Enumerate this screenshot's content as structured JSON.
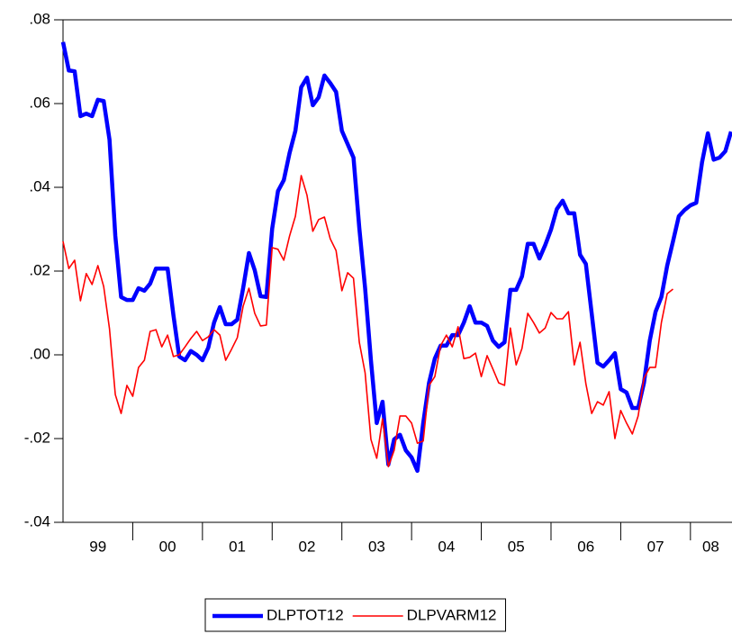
{
  "chart_data": {
    "type": "line",
    "categories": [
      null,
      null,
      null,
      null,
      null,
      null,
      "99",
      null,
      null,
      null,
      null,
      null,
      null,
      null,
      null,
      null,
      null,
      null,
      "00",
      null,
      null,
      null,
      null,
      null,
      null,
      null,
      null,
      null,
      null,
      null,
      "01",
      null,
      null,
      null,
      null,
      null,
      null,
      null,
      null,
      null,
      null,
      null,
      "02",
      null,
      null,
      null,
      null,
      null,
      null,
      null,
      null,
      null,
      null,
      null,
      "03",
      null,
      null,
      null,
      null,
      null,
      null,
      null,
      null,
      null,
      null,
      null,
      "04",
      null,
      null,
      null,
      null,
      null,
      null,
      null,
      null,
      null,
      null,
      null,
      "05",
      null,
      null,
      null,
      null,
      null,
      null,
      null,
      null,
      null,
      null,
      null,
      "06",
      null,
      null,
      null,
      null,
      null,
      null,
      null,
      null,
      null,
      null,
      null,
      "07",
      null,
      null,
      null,
      null,
      null,
      null,
      null,
      null,
      null,
      null,
      null,
      "08",
      null
    ],
    "series": [
      {
        "name": "DLPTOT12",
        "color": "#0000ff",
        "values": [
          0.0747,
          0.0679,
          0.0677,
          0.057,
          0.0576,
          0.057,
          0.0609,
          0.0606,
          0.0514,
          0.0284,
          0.0138,
          0.0131,
          0.0131,
          0.0159,
          0.0153,
          0.017,
          0.0206,
          0.0206,
          0.0206,
          0.0095,
          -0.0004,
          -0.0013,
          0.0009,
          0,
          -0.0013,
          0.0017,
          0.0077,
          0.0114,
          0.0073,
          0.0073,
          0.0084,
          0.0159,
          0.0243,
          0.0202,
          0.014,
          0.0138,
          0.0301,
          0.0391,
          0.0417,
          0.0482,
          0.0535,
          0.0639,
          0.0662,
          0.0596,
          0.0615,
          0.0667,
          0.0649,
          0.0628,
          0.0535,
          0.0503,
          0.0471,
          0.0303,
          0.0159,
          -0.0013,
          -0.0163,
          -0.0112,
          -0.0262,
          -0.0202,
          -0.0191,
          -0.0228,
          -0.0245,
          -0.0277,
          -0.0163,
          -0.0067,
          -0.0009,
          0.0022,
          0.0022,
          0.0047,
          0.0047,
          0.0077,
          0.0116,
          0.0077,
          0.0077,
          0.0069,
          0.0034,
          0.0019,
          0.003,
          0.0155,
          0.0155,
          0.0187,
          0.0265,
          0.0265,
          0.023,
          0.0262,
          0.0299,
          0.0348,
          0.0368,
          0.0338,
          0.0338,
          0.0239,
          0.0217,
          0.0099,
          -0.0019,
          -0.0028,
          -0.0013,
          0.0004,
          -0.0082,
          -0.009,
          -0.0127,
          -0.0127,
          -0.0067,
          0.0034,
          0.0103,
          0.0138,
          0.0213,
          0.0271,
          0.0331,
          0.0346,
          0.0357,
          0.0363,
          0.046,
          0.0529,
          0.0466,
          0.0471,
          0.0486,
          0.0533
        ]
      },
      {
        "name": "DLPVARM12",
        "color": "#ff0000",
        "values": [
          0.0271,
          0.0206,
          0.0226,
          0.0129,
          0.0194,
          0.0168,
          0.0213,
          0.0163,
          0.0062,
          -0.0095,
          -0.014,
          -0.0073,
          -0.0099,
          -0.003,
          -0.0013,
          0.0056,
          0.006,
          0.0019,
          0.0047,
          -0.0004,
          0,
          0.0019,
          0.0039,
          0.0056,
          0.0034,
          0.0043,
          0.006,
          0.0047,
          -0.0013,
          0.0013,
          0.0041,
          0.0116,
          0.0159,
          0.0099,
          0.0069,
          0.0071,
          0.0256,
          0.0252,
          0.0226,
          0.0284,
          0.0331,
          0.0428,
          0.0381,
          0.0295,
          0.0323,
          0.0329,
          0.0277,
          0.0249,
          0.0153,
          0.0196,
          0.0183,
          0.003,
          -0.0043,
          -0.0202,
          -0.0247,
          -0.0153,
          -0.0267,
          -0.0228,
          -0.0146,
          -0.0146,
          -0.0163,
          -0.0211,
          -0.0206,
          -0.0073,
          -0.0052,
          0.0022,
          0.0047,
          0.0019,
          0.0067,
          -0.0009,
          -0.0006,
          0.0004,
          -0.0052,
          -0.0002,
          -0.0034,
          -0.0067,
          -0.0073,
          0.0064,
          -0.0024,
          0.0015,
          0.0099,
          0.0077,
          0.0052,
          0.0064,
          0.0101,
          0.0086,
          0.0086,
          0.0103,
          -0.0024,
          0.003,
          -0.0069,
          -0.014,
          -0.0112,
          -0.012,
          -0.0088,
          -0.02,
          -0.0133,
          -0.0163,
          -0.0189,
          -0.0146,
          -0.0056,
          -0.003,
          -0.003,
          0.0077,
          0.0146,
          0.0157,
          null,
          null,
          null,
          null,
          null,
          null,
          null,
          null,
          null,
          null
        ]
      }
    ],
    "ylim": [
      -0.04,
      0.08
    ],
    "yticks": [
      {
        "value": -0.04,
        "label": "-.04"
      },
      {
        "value": -0.02,
        "label": "-.02"
      },
      {
        "value": 0,
        "label": ".00"
      },
      {
        "value": 0.02,
        "label": ".02"
      },
      {
        "value": 0.04,
        "label": ".04"
      },
      {
        "value": 0.06,
        "label": ".06"
      },
      {
        "value": 0.08,
        "label": ".08"
      }
    ],
    "legend": "bottom"
  }
}
